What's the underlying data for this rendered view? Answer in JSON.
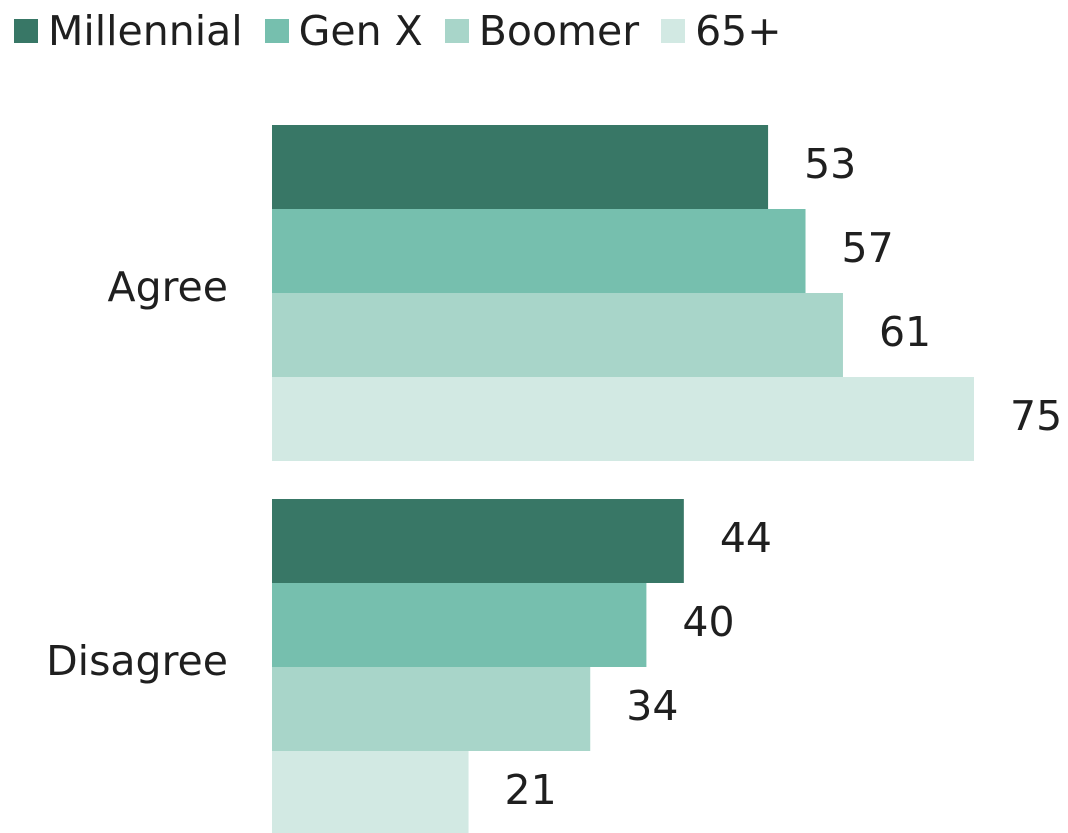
{
  "chart_data": {
    "type": "bar",
    "orientation": "horizontal",
    "categories": [
      "Agree",
      "Disagree"
    ],
    "series": [
      {
        "name": "Millennial",
        "values": [
          53,
          44
        ],
        "color": "#387766"
      },
      {
        "name": "Gen X",
        "values": [
          57,
          40
        ],
        "color": "#76bfae"
      },
      {
        "name": "Boomer",
        "values": [
          61,
          34
        ],
        "color": "#a8d5c9"
      },
      {
        "name": "65+",
        "values": [
          75,
          21
        ],
        "color": "#d2e9e3"
      }
    ],
    "xlim": [
      0,
      100
    ],
    "grid": false,
    "legend_position": "top-left",
    "data_labels": true
  }
}
